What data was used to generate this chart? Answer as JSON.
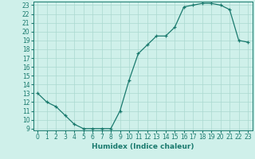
{
  "xlabel": "Humidex (Indice chaleur)",
  "x": [
    0,
    1,
    2,
    3,
    4,
    5,
    6,
    7,
    8,
    9,
    10,
    11,
    12,
    13,
    14,
    15,
    16,
    17,
    18,
    19,
    20,
    21,
    22,
    23
  ],
  "y": [
    13,
    12,
    11.5,
    10.5,
    9.5,
    9.0,
    9.0,
    9.0,
    9.0,
    11.0,
    14.5,
    17.5,
    18.5,
    19.5,
    19.5,
    20.5,
    22.8,
    23.0,
    23.2,
    23.2,
    23.0,
    22.5,
    19.0,
    18.8
  ],
  "xlim": [
    -0.5,
    23.5
  ],
  "ylim": [
    8.8,
    23.4
  ],
  "yticks": [
    9,
    10,
    11,
    12,
    13,
    14,
    15,
    16,
    17,
    18,
    19,
    20,
    21,
    22,
    23
  ],
  "xticks": [
    0,
    1,
    2,
    3,
    4,
    5,
    6,
    7,
    8,
    9,
    10,
    11,
    12,
    13,
    14,
    15,
    16,
    17,
    18,
    19,
    20,
    21,
    22,
    23
  ],
  "line_color": "#1a7a6e",
  "marker": "+",
  "bg_color": "#cff0ea",
  "grid_color": "#aad8d0",
  "tick_label_fontsize": 5.5,
  "xlabel_fontsize": 6.5
}
